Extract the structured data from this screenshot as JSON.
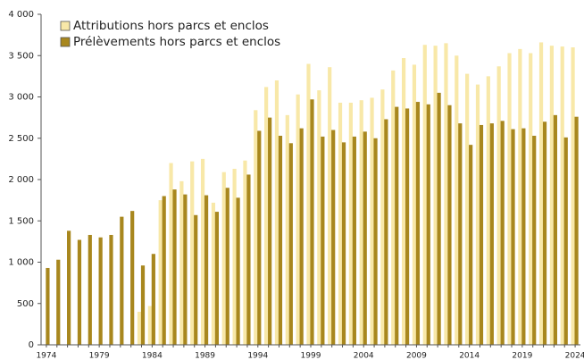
{
  "chart_data": {
    "type": "bar",
    "categories": [
      "1974",
      null,
      null,
      null,
      null,
      "1979",
      null,
      null,
      null,
      null,
      "1984",
      null,
      null,
      null,
      null,
      "1989",
      null,
      null,
      null,
      null,
      "1994",
      null,
      null,
      null,
      null,
      "1999",
      null,
      null,
      null,
      null,
      "2004",
      null,
      null,
      null,
      null,
      "2009",
      null,
      null,
      null,
      null,
      "2014",
      null,
      null,
      null,
      null,
      "2019",
      null,
      null,
      null,
      null,
      "2024"
    ],
    "series": [
      {
        "name": "Attributions hors parcs et enclos",
        "color": "#f8e8a8",
        "values": [
          null,
          null,
          null,
          null,
          null,
          null,
          null,
          null,
          null,
          400,
          470,
          1750,
          2200,
          1980,
          2220,
          2250,
          1720,
          2090,
          2130,
          2230,
          2840,
          3120,
          3200,
          2780,
          3030,
          3400,
          3080,
          3360,
          2930,
          2930,
          2960,
          2990,
          3090,
          3320,
          3470,
          3390,
          3630,
          3620,
          3650,
          3500,
          3280,
          3150,
          3250,
          3370,
          3530,
          3580,
          3530,
          3660,
          3620,
          3610,
          3600
        ]
      },
      {
        "name": "Prélèvements hors parcs et enclos",
        "color": "#a8871e",
        "values": [
          930,
          1030,
          1380,
          1270,
          1330,
          1300,
          1330,
          1550,
          1620,
          960,
          1100,
          1800,
          1880,
          1820,
          1570,
          1810,
          1610,
          1900,
          1780,
          2060,
          2590,
          2750,
          2530,
          2440,
          2620,
          2970,
          2520,
          2600,
          2450,
          2520,
          2580,
          2500,
          2730,
          2880,
          2860,
          2940,
          2910,
          3050,
          2900,
          2680,
          2420,
          2660,
          2680,
          2710,
          2610,
          2620,
          2530,
          2700,
          2780,
          2510,
          2760
        ]
      }
    ],
    "ylim": [
      0,
      4000
    ],
    "yticks": [
      0,
      500,
      {
        "value": 1000,
        "label": "1 000"
      },
      {
        "value": 1500,
        "label": "1 500"
      },
      {
        "value": 2000,
        "label": "2 000"
      },
      {
        "value": 2500,
        "label": "2 500"
      },
      {
        "value": 3000,
        "label": "3 000"
      },
      {
        "value": 3500,
        "label": "3 500"
      },
      {
        "value": 4000,
        "label": "4 000"
      }
    ],
    "grid": false,
    "legend": "upper left"
  }
}
